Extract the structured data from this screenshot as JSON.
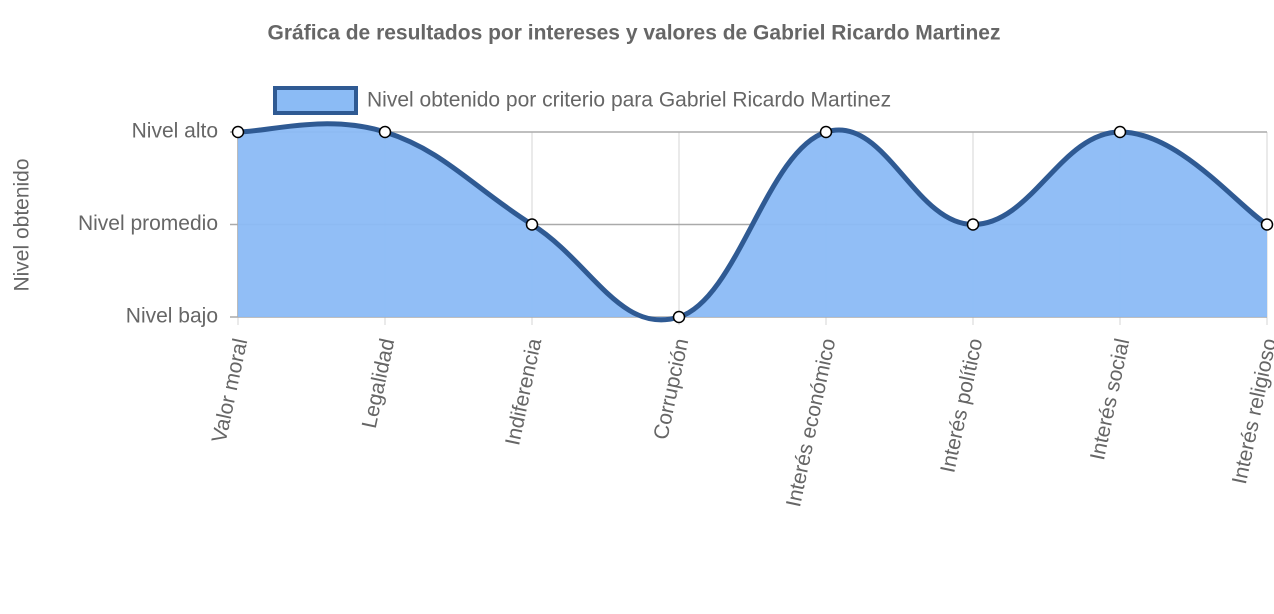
{
  "chart_data": {
    "type": "area",
    "title": "Gráfica de resultados por intereses y valores de Gabriel Ricardo Martinez",
    "y_label": "Nivel obtenido",
    "categories": [
      "Valor moral",
      "Legalidad",
      "Indiferencia",
      "Corrupción",
      "Interés económico",
      "Interés político",
      "Interés social",
      "Interés religioso"
    ],
    "series": [
      {
        "name": "Nivel obtenido por criterio para Gabriel Ricardo Martinez",
        "color": "#2f5a93",
        "fill": "#8bbbf5",
        "values": [
          3,
          3,
          2,
          1,
          3,
          2,
          3,
          2
        ]
      }
    ],
    "ylim": [
      1,
      3
    ],
    "yticks": [
      {
        "value": 1,
        "label": "Nivel bajo"
      },
      {
        "value": 2,
        "label": "Nivel promedio"
      },
      {
        "value": 3,
        "label": "Nivel alto"
      }
    ],
    "grid": true,
    "legend": "top"
  }
}
